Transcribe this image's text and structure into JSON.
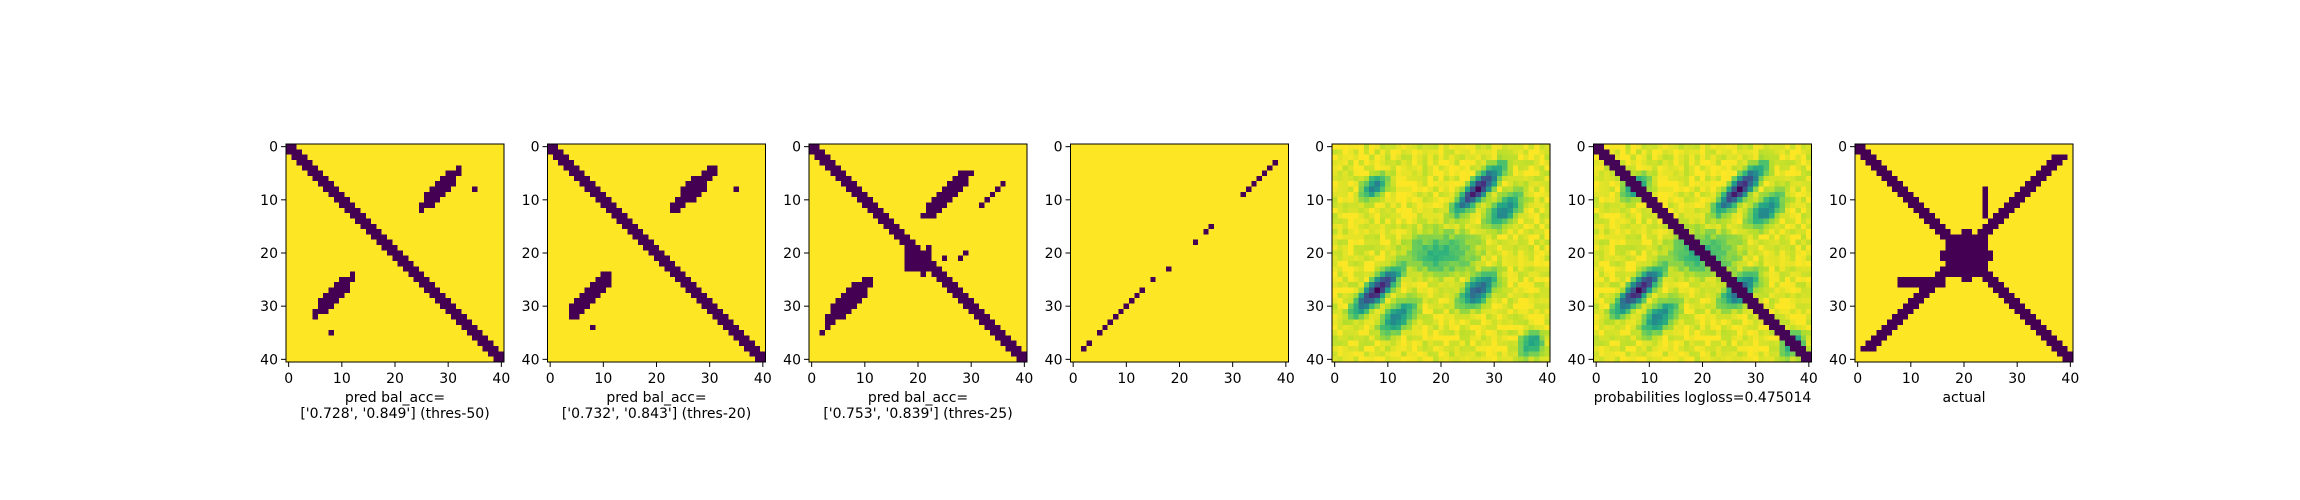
{
  "chart_data": {
    "type": "heatmap",
    "n": 41,
    "ticks": [
      0,
      10,
      20,
      30,
      40
    ],
    "colors": {
      "low": "#440154",
      "mid": "#21918c",
      "high": "#fde725"
    },
    "panels": [
      {
        "kind": "binary",
        "pattern": "pred_a",
        "xlabel": [
          "pred bal_acc=",
          "['0.728', '0.849'] (thres-50)"
        ]
      },
      {
        "kind": "binary",
        "pattern": "pred_b",
        "xlabel": [
          "pred bal_acc=",
          "['0.732', '0.843'] (thres-20)"
        ]
      },
      {
        "kind": "binary",
        "pattern": "pred_c",
        "xlabel": [
          "pred bal_acc=",
          "['0.753', '0.839'] (thres-25)"
        ]
      },
      {
        "kind": "binary",
        "pattern": "antidiag_sparse",
        "xlabel": []
      },
      {
        "kind": "continuous",
        "pattern": "prob_off",
        "xlabel": []
      },
      {
        "kind": "continuous",
        "pattern": "prob_full",
        "xlabel": [
          "probabilities logloss=0.475014"
        ]
      },
      {
        "kind": "binary",
        "pattern": "actual",
        "xlabel": [
          "actual"
        ]
      }
    ]
  }
}
